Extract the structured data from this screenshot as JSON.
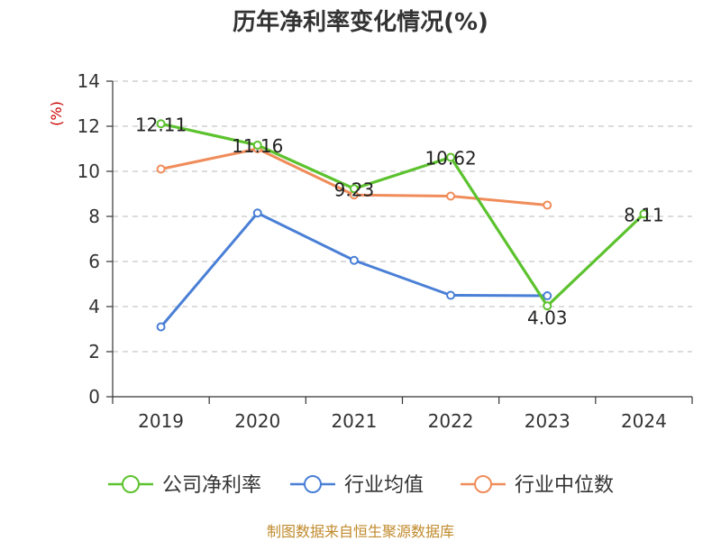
{
  "chart_data": {
    "type": "line",
    "title": "历年净利率变化情况(%)",
    "y_unit": "(%)",
    "categories": [
      "2019",
      "2020",
      "2021",
      "2022",
      "2023",
      "2024"
    ],
    "ylim": [
      0,
      14
    ],
    "yticks": [
      "0",
      "2",
      "4",
      "6",
      "8",
      "10",
      "12",
      "14"
    ],
    "grid": true,
    "legend_position": "bottom",
    "series": [
      {
        "name": "公司净利率",
        "color": "#5cc22e",
        "values": [
          12.11,
          11.16,
          9.23,
          10.62,
          4.03,
          8.11
        ],
        "labels": [
          "12.11",
          "11.16",
          "9.23",
          "10.62",
          "4.03",
          "8.11"
        ]
      },
      {
        "name": "行业均值",
        "color": "#4a7fd6",
        "values": [
          3.1,
          8.15,
          6.05,
          4.5,
          4.48,
          null
        ]
      },
      {
        "name": "行业中位数",
        "color": "#f08c5a",
        "values": [
          10.1,
          11.0,
          8.95,
          8.9,
          8.5,
          null
        ]
      }
    ]
  },
  "source": "制图数据来自恒生聚源数据库"
}
